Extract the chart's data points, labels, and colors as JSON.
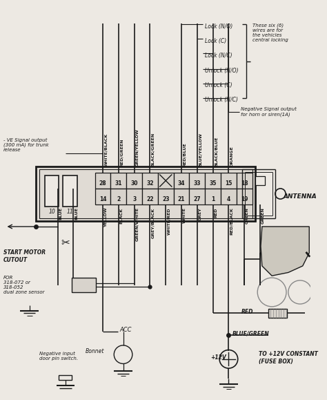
{
  "bg_color": "#ede9e3",
  "line_color": "#1a1a1a",
  "text_color": "#1a1a1a",
  "connector_top": [
    "28",
    "31",
    "30",
    "32",
    "",
    "34",
    "33",
    "35",
    "15",
    "18"
  ],
  "connector_bot": [
    "14",
    "2",
    "3",
    "22",
    "23",
    "21",
    "27",
    "1",
    "4",
    "19"
  ],
  "top_wire_labels": [
    "WHITE/BLACK",
    "RED/GREEN",
    "GREEN/YELLOW",
    "BLACK/GREEN",
    "RED/BLUE",
    "BLUE/YELLOW",
    "BLACK/BLUE",
    "ORANGE"
  ],
  "bot_wire_labels": [
    "YELLOW",
    "BLACK",
    "GREEN/WHITE",
    "GREY/BLACK",
    "WHITE/RED",
    "WHITE",
    "GREY",
    "RED",
    "RED/BLACK",
    "GREEN",
    "GREEN"
  ],
  "central_lock_labels": [
    "Lock (N/O)",
    "Lock (C)",
    "Lock (N/C)",
    "Unlock (N/O)",
    "Unlock (C)",
    "Unlock (N/C)"
  ]
}
